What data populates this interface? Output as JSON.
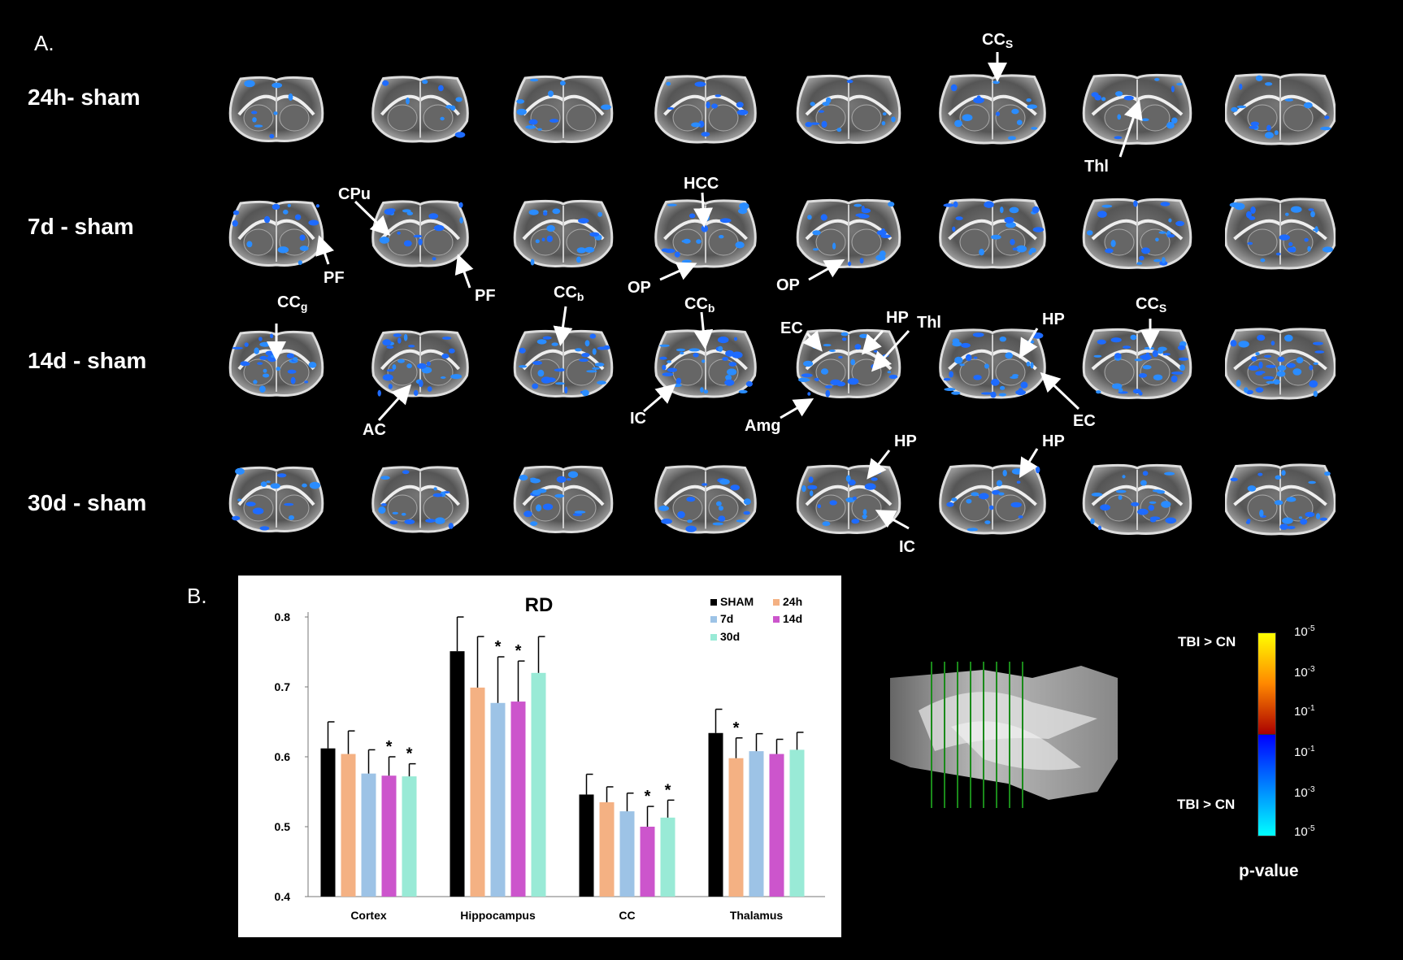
{
  "panel_a_label": "A.",
  "panel_b_label": "B.",
  "rows": [
    "24h- sham",
    "7d - sham",
    "14d - sham",
    "30d - sham"
  ],
  "annotations": {
    "ccs_1": {
      "main": "CC",
      "sub": "S"
    },
    "thl_1": "Thl",
    "cpu": "CPu",
    "hcc": "HCC",
    "pf_1": "PF",
    "pf_2": "PF",
    "op_1": "OP",
    "op_2": "OP",
    "ccg": {
      "main": "CC",
      "sub": "g"
    },
    "ccb_1": {
      "main": "CC",
      "sub": "b"
    },
    "ccb_2": {
      "main": "CC",
      "sub": "b"
    },
    "ec_1": "EC",
    "hp_1": "HP",
    "thl_2": "Thl",
    "hp_2": "HP",
    "ccs_2": {
      "main": "CC",
      "sub": "S"
    },
    "ac": "AC",
    "ic_1": "IC",
    "amg": "Amg",
    "ec_2": "EC",
    "hp_3": "HP",
    "hp_4": "HP",
    "ic_2": "IC"
  },
  "colorbar": {
    "upper_label": "TBI > CN",
    "lower_label": "TBI > CN",
    "ticks": [
      {
        "base": "10",
        "exp": "-5"
      },
      {
        "base": "10",
        "exp": "-3"
      },
      {
        "base": "10",
        "exp": "-1"
      },
      {
        "base": "10",
        "exp": "-1"
      },
      {
        "base": "10",
        "exp": "-3"
      },
      {
        "base": "10",
        "exp": "-5"
      }
    ],
    "title": "p-value",
    "colors": {
      "upper_top": "#ffff00",
      "upper_mid": "#ff8800",
      "upper_bottom": "#aa0000",
      "lower_top": "#0000ff",
      "lower_mid": "#0080ff",
      "lower_bottom": "#00ffff"
    }
  },
  "chart_data": {
    "type": "bar",
    "title": "RD",
    "categories": [
      "Cortex",
      "Hippocampus",
      "CC",
      "Thalamus"
    ],
    "ylim": [
      0.4,
      0.8
    ],
    "yticks": [
      "0.4",
      "0.5",
      "0.6",
      "0.7",
      "0.8"
    ],
    "legend_position": "top-right",
    "series": [
      {
        "name": "SHAM",
        "color": "#000000",
        "values": [
          0.612,
          0.751,
          0.546,
          0.634
        ],
        "errors": [
          0.038,
          0.049,
          0.029,
          0.034
        ],
        "sig": [
          false,
          false,
          false,
          false
        ]
      },
      {
        "name": "24h",
        "color": "#f4b183",
        "values": [
          0.604,
          0.699,
          0.535,
          0.598
        ],
        "errors": [
          0.033,
          0.073,
          0.022,
          0.029
        ],
        "sig": [
          false,
          false,
          false,
          true
        ]
      },
      {
        "name": "7d",
        "color": "#9dc3e6",
        "values": [
          0.576,
          0.677,
          0.522,
          0.608
        ],
        "errors": [
          0.034,
          0.066,
          0.026,
          0.025
        ],
        "sig": [
          false,
          true,
          false,
          false
        ]
      },
      {
        "name": "14d",
        "color": "#cc55cc",
        "values": [
          0.573,
          0.679,
          0.5,
          0.604
        ],
        "errors": [
          0.027,
          0.058,
          0.029,
          0.021
        ],
        "sig": [
          true,
          true,
          true,
          false
        ]
      },
      {
        "name": "30d",
        "color": "#99ead6",
        "values": [
          0.572,
          0.72,
          0.513,
          0.61
        ],
        "errors": [
          0.018,
          0.052,
          0.025,
          0.025
        ],
        "sig": [
          true,
          false,
          true,
          false
        ]
      }
    ],
    "significance_marker": "*"
  }
}
